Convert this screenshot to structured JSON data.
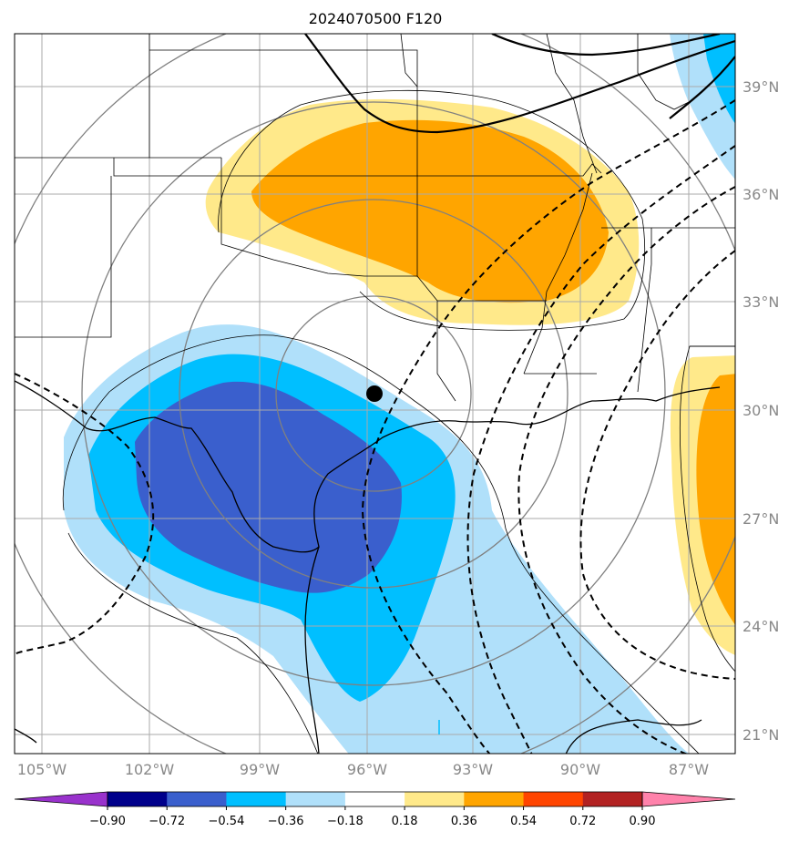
{
  "title": "2024070500 F120",
  "map": {
    "lat_labels": [
      "39°N",
      "36°N",
      "33°N",
      "30°N",
      "27°N",
      "24°N",
      "21°N"
    ],
    "lon_labels": [
      "105°W",
      "102°W",
      "99°W",
      "96°W",
      "93°W",
      "90°W",
      "87°W"
    ],
    "marker": "storm-center-marker"
  },
  "colorbar": {
    "labels": [
      "−0.90",
      "−0.72",
      "−0.54",
      "−0.36",
      "−0.18",
      "0.18",
      "0.36",
      "0.54",
      "0.72",
      "0.90"
    ],
    "colors": [
      "#9932cc",
      "#00008b",
      "#3a5fcd",
      "#00bfff",
      "#b0e0fa",
      "#ffffff",
      "#ffe98a",
      "#ffa500",
      "#ff4500",
      "#b22222",
      "#ff82ab"
    ]
  },
  "colors": {
    "neg_strong": "#3a5fcd",
    "neg_mid": "#00bfff",
    "neg_weak": "#b0e0fa",
    "pos_weak": "#ffe98a",
    "pos_mid": "#ffa500",
    "grid": "#aaaaaa",
    "range_rings": "#808080"
  }
}
